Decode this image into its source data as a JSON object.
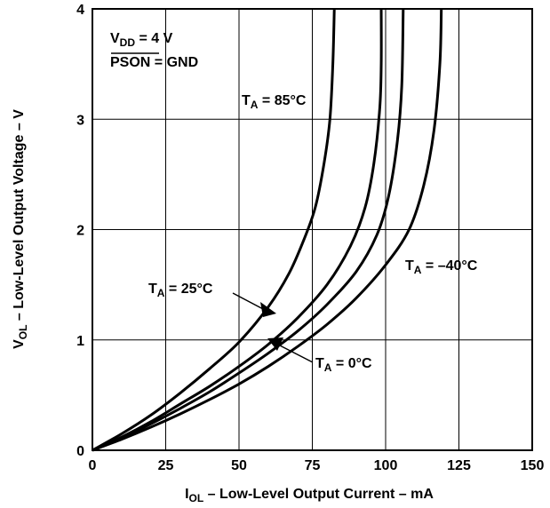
{
  "chart_data": {
    "type": "line",
    "xlabel": "I_OL – Low-Level Output Current – mA",
    "xlabel_main": "I",
    "xlabel_sub": "OL",
    "xlabel_rest": " – Low-Level Output Current – mA",
    "ylabel": "V_OL – Low-Level Output Voltage – V",
    "ylabel_main": "V",
    "ylabel_sub": "OL",
    "ylabel_rest": " – Low-Level Output Voltage – V",
    "xlim": [
      0,
      150
    ],
    "ylim": [
      0,
      4
    ],
    "x_ticks": [
      0,
      25,
      50,
      75,
      100,
      125,
      150
    ],
    "y_ticks": [
      0,
      1,
      2,
      3,
      4
    ],
    "x_tick_labels": [
      "0",
      "25",
      "50",
      "75",
      "100",
      "125",
      "150"
    ],
    "y_tick_labels": [
      "0",
      "1",
      "2",
      "3",
      "4"
    ],
    "grid": true,
    "conditions": {
      "vdd_main": "V",
      "vdd_sub": "DD",
      "vdd_rest": " = 4 V",
      "pson_overlined": "PSON",
      "pson_rest": " = GND"
    },
    "series": [
      {
        "name": "T_A = 85°C",
        "label_main": "T",
        "label_sub": "A",
        "label_rest": " = 85°C",
        "points": [
          [
            0,
            0
          ],
          [
            10,
            0.15
          ],
          [
            20,
            0.32
          ],
          [
            30,
            0.52
          ],
          [
            40,
            0.74
          ],
          [
            50,
            0.98
          ],
          [
            60,
            1.3
          ],
          [
            67,
            1.6
          ],
          [
            72,
            1.9
          ],
          [
            76,
            2.2
          ],
          [
            79,
            2.6
          ],
          [
            81,
            3.0
          ],
          [
            82,
            3.5
          ],
          [
            82.5,
            4.0
          ]
        ]
      },
      {
        "name": "T_A = 25°C",
        "label_main": "T",
        "label_sub": "A",
        "label_rest": " = 25°C",
        "points": [
          [
            0,
            0
          ],
          [
            10,
            0.12
          ],
          [
            20,
            0.26
          ],
          [
            30,
            0.42
          ],
          [
            40,
            0.58
          ],
          [
            50,
            0.76
          ],
          [
            60,
            0.96
          ],
          [
            70,
            1.2
          ],
          [
            80,
            1.5
          ],
          [
            88,
            1.85
          ],
          [
            93,
            2.2
          ],
          [
            96,
            2.6
          ],
          [
            98,
            3.1
          ],
          [
            98.5,
            3.5
          ],
          [
            98.5,
            4.0
          ]
        ]
      },
      {
        "name": "T_A = 0°C",
        "label_main": "T",
        "label_sub": "A",
        "label_rest": " = 0°C",
        "points": [
          [
            0,
            0
          ],
          [
            10,
            0.11
          ],
          [
            20,
            0.24
          ],
          [
            30,
            0.38
          ],
          [
            40,
            0.53
          ],
          [
            50,
            0.7
          ],
          [
            60,
            0.88
          ],
          [
            70,
            1.08
          ],
          [
            80,
            1.32
          ],
          [
            90,
            1.62
          ],
          [
            97,
            1.95
          ],
          [
            101,
            2.3
          ],
          [
            104,
            2.8
          ],
          [
            105.5,
            3.3
          ],
          [
            106,
            4.0
          ]
        ]
      },
      {
        "name": "T_A = –40°C",
        "label_main": "T",
        "label_sub": "A",
        "label_rest": " = –40°C",
        "points": [
          [
            0,
            0
          ],
          [
            10,
            0.1
          ],
          [
            20,
            0.21
          ],
          [
            30,
            0.33
          ],
          [
            40,
            0.46
          ],
          [
            50,
            0.6
          ],
          [
            60,
            0.76
          ],
          [
            70,
            0.94
          ],
          [
            80,
            1.14
          ],
          [
            90,
            1.38
          ],
          [
            100,
            1.68
          ],
          [
            108,
            2.0
          ],
          [
            113,
            2.4
          ],
          [
            116.5,
            2.9
          ],
          [
            118.5,
            3.5
          ],
          [
            119,
            4.0
          ]
        ]
      }
    ]
  },
  "styles": {
    "line_color": "#000000",
    "grid_color": "#000000",
    "background": "#ffffff"
  }
}
